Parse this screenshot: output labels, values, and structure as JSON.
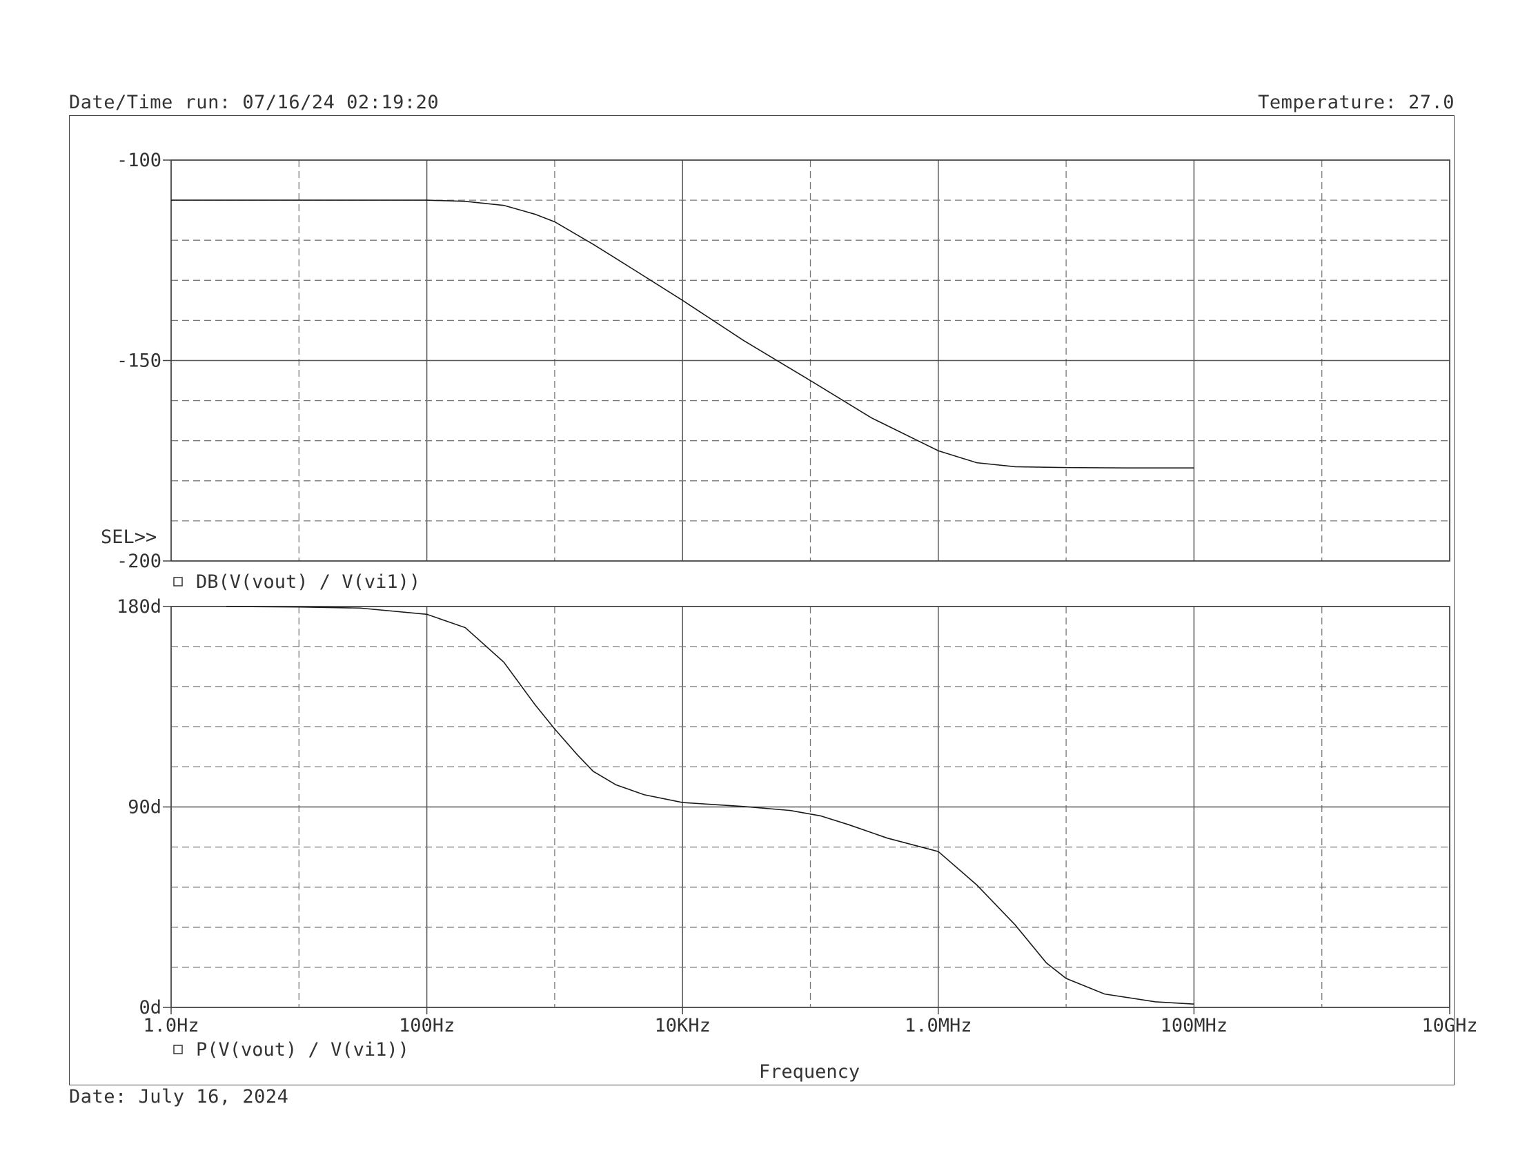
{
  "header": {
    "datetime": "Date/Time run: 07/16/24 02:19:20",
    "temperature": "Temperature: 27.0"
  },
  "footer": {
    "date": "Date: July 16, 2024"
  },
  "chart_data": [
    {
      "type": "line",
      "x_scale": "log",
      "xlim": [
        1,
        10000000000
      ],
      "ylim": [
        -200,
        -100
      ],
      "y_ticks": [
        "-100",
        "-150",
        "-200"
      ],
      "selector": "SEL>>",
      "legend": "DB(V(vout) / V(vi1))",
      "grid": true,
      "series": [
        {
          "name": "DB(V(vout) / V(vi1))",
          "x": [
            1,
            10,
            100,
            200,
            400,
            700,
            1000,
            2000,
            4000,
            10000,
            30000,
            100000,
            300000,
            1000000,
            2000000,
            4000000,
            10000000,
            30000000,
            100000000
          ],
          "y": [
            -110,
            -110,
            -110,
            -110.3,
            -111.3,
            -113.5,
            -115.4,
            -121,
            -127,
            -135,
            -145,
            -155,
            -164.3,
            -172.5,
            -175.5,
            -176.5,
            -176.7,
            -176.8,
            -176.8
          ]
        }
      ]
    },
    {
      "type": "line",
      "x_scale": "log",
      "xlim": [
        1,
        10000000000
      ],
      "ylim": [
        0,
        180
      ],
      "y_ticks": [
        "180d",
        "90d",
        "0d"
      ],
      "x_ticks": [
        "1.0Hz",
        "100Hz",
        "10KHz",
        "1.0MHz",
        "100MHz",
        "10GHz"
      ],
      "xlabel": "Frequency",
      "legend": "P(V(vout) / V(vi1))",
      "grid": true,
      "series": [
        {
          "name": "P(V(vout) / V(vi1))",
          "x": [
            2.7,
            10,
            30,
            100,
            200,
            400,
            700,
            1000,
            1500,
            2000,
            3000,
            5000,
            10000,
            30000,
            70000,
            120000,
            200000,
            400000,
            1000000,
            2000000,
            4000000,
            7000000,
            10000000,
            20000000,
            50000000,
            100000000
          ],
          "y": [
            180,
            179.8,
            179.3,
            176.5,
            170.5,
            155,
            136,
            125,
            113.5,
            106,
            100,
            95.5,
            92,
            90.2,
            88.4,
            86,
            82,
            76,
            70,
            55,
            37,
            20,
            13,
            6,
            2.5,
            1.5
          ]
        }
      ]
    }
  ]
}
